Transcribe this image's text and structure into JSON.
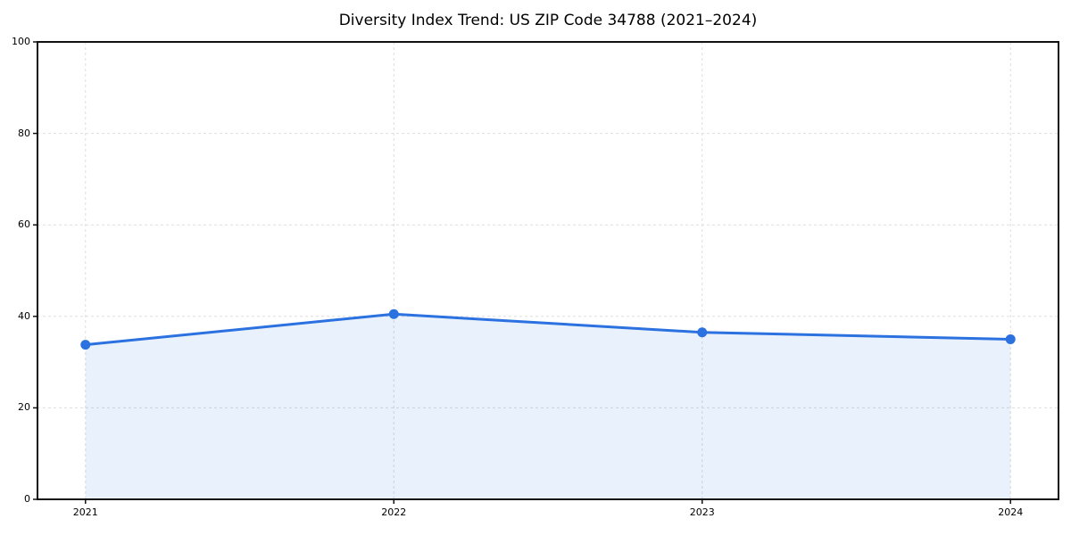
{
  "title": "Diversity Index Trend: US ZIP Code 34788 (2021–2024)",
  "chart_data": {
    "type": "area",
    "title": "Diversity Index Trend: US ZIP Code 34788 (2021–2024)",
    "categories": [
      "2021",
      "2022",
      "2023",
      "2024"
    ],
    "series": [
      {
        "name": "Diversity Index",
        "values": [
          33.8,
          40.5,
          36.5,
          35.0
        ]
      }
    ],
    "xlabel": "",
    "ylabel": "",
    "ylim": [
      0,
      100
    ],
    "yticks": [
      0,
      20,
      40,
      60,
      80,
      100
    ],
    "grid": true,
    "grid_style": "dashed",
    "legend": false,
    "line_color": "#2b71e0",
    "marker_color": "#2b71e0",
    "fill_color": "rgba(43, 113, 224, 0.10)",
    "grid_color": "#dddddd",
    "frame_color": "#111111",
    "background_color": "#ffffff"
  }
}
